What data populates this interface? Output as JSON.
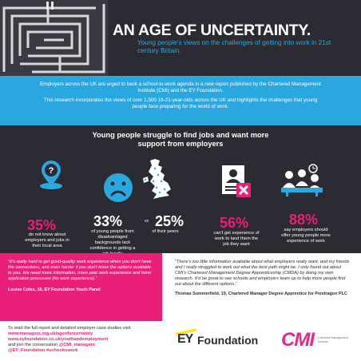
{
  "header": {
    "title": "AN AGE OF UNCERTAINTY.",
    "subtitle": "Young people’s views on the challenges of getting into work in 21st century Britain."
  },
  "intro": {
    "p1": "Employers across the UK are urged to back a school-to-work agenda in a new report published by the Chartered Management Institute (CMI) and the EY Foundation.",
    "p2": "This research incorporates the views of over 1,500 16-21-year-olds across the UK and highlights the challenges that young people face preparing for the world of work."
  },
  "stats": {
    "heading": "Young people struggle to find jobs and want more support from employers",
    "items": [
      {
        "value": "35%",
        "text": "do not know about employers and jobs in their local area",
        "icon": "question-location-icon"
      },
      {
        "value": "33%",
        "text": "of young people from disadvantaged backgrounds lack confidence in getting a job locally",
        "icon": "sad-face-icon"
      },
      {
        "value": "25%",
        "text": "of their peers",
        "icon": "uk-map-icon"
      },
      {
        "value": "56%",
        "text": "can’t get experience of work to land them the job they want",
        "icon": "rejected-cv-icon"
      },
      {
        "value": "88%",
        "text": "say employers should offer young people more experience of work",
        "icon": "meeting-icon"
      }
    ],
    "vs_label": "vs"
  },
  "quotes": {
    "left": {
      "text": "“It’s really hard to get good-quality work experience when you don’t have the connections, and even harder if you don’t know the options available to you. We need more information, more paid work experience and fairer application processes (for work experience).”",
      "author": "Louise Coles, 16, EY Foundation Youth Panel"
    },
    "right": {
      "text": "“There’s too little information available about what employers really want, and my friends and I really struggled to work out what the best path might be. I only found out about CMI’s Chartered Management Degree Apprenticeship (CMDA) by doing my own research. It’d be great to see schools and employers team up to help more people find out about the different options.”",
      "author": "Thomas Summerfield, 19, Chartered Manager Degree Apprentice for Pendragon PLC"
    }
  },
  "footer": {
    "line1": "To read the full report and detailed employer case studies visit",
    "link1": "www.managers.org.uk/ageofuncertainty",
    "link2": "www.eyfoundation.co.uk/youthandemployment",
    "line2": "and join the conversation",
    "handle1": "@CMI_managers",
    "handle2": "@EY_Foundation",
    "hashtag": "#schooltowork",
    "ey_mark": "EY",
    "ey_name": "Foundation",
    "cmi_mark": "CMI",
    "cmi_sub": "Chartered Management Institute"
  },
  "colors": {
    "dark": "#2b2b33",
    "blue": "#2aa7df",
    "pink": "#ea1f7a",
    "ey_yellow": "#ffe600"
  }
}
